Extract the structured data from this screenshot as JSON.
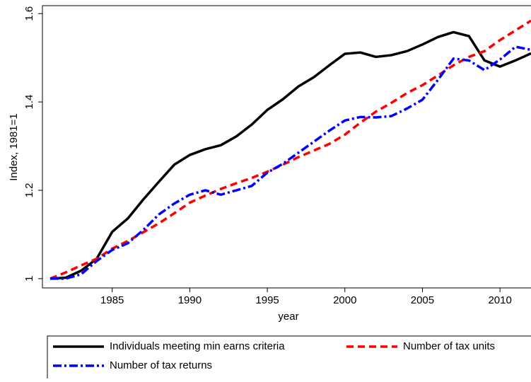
{
  "chart_data": {
    "type": "line",
    "x_label": "year",
    "y_label": "Index, 1981=1",
    "x": [
      1981,
      1982,
      1983,
      1984,
      1985,
      1986,
      1987,
      1988,
      1989,
      1990,
      1991,
      1992,
      1993,
      1994,
      1995,
      1996,
      1997,
      1998,
      1999,
      2000,
      2001,
      2002,
      2003,
      2004,
      2005,
      2006,
      2007,
      2008,
      2009,
      2010,
      2011,
      2012
    ],
    "series": [
      {
        "name": "Individuals meeting min earns criteria",
        "color": "#000000",
        "dash": "solid",
        "values": [
          1.0,
          1.002,
          1.018,
          1.045,
          1.106,
          1.136,
          1.179,
          1.219,
          1.258,
          1.28,
          1.293,
          1.302,
          1.322,
          1.349,
          1.382,
          1.406,
          1.435,
          1.456,
          1.483,
          1.509,
          1.512,
          1.502,
          1.506,
          1.515,
          1.53,
          1.547,
          1.558,
          1.549,
          1.494,
          1.48,
          1.494,
          1.51
        ]
      },
      {
        "name": "Number of tax units",
        "color": "#ff0000",
        "dash": "dashed",
        "values": [
          1.0,
          1.014,
          1.03,
          1.045,
          1.068,
          1.085,
          1.105,
          1.125,
          1.148,
          1.172,
          1.188,
          1.203,
          1.216,
          1.228,
          1.242,
          1.258,
          1.275,
          1.29,
          1.305,
          1.326,
          1.353,
          1.378,
          1.398,
          1.42,
          1.438,
          1.46,
          1.483,
          1.502,
          1.515,
          1.54,
          1.562,
          1.584
        ]
      },
      {
        "name": "Number of tax returns",
        "color": "#0000ff",
        "dash": "dashdot",
        "values": [
          1.0,
          1.0,
          1.01,
          1.04,
          1.065,
          1.08,
          1.11,
          1.145,
          1.17,
          1.19,
          1.2,
          1.19,
          1.2,
          1.21,
          1.24,
          1.26,
          1.285,
          1.31,
          1.335,
          1.358,
          1.366,
          1.365,
          1.368,
          1.385,
          1.405,
          1.45,
          1.498,
          1.494,
          1.472,
          1.496,
          1.525,
          1.518
        ]
      }
    ],
    "xlim": [
      1980.5,
      2012
    ],
    "ylim": [
      0.979,
      1.618
    ],
    "xticks": [
      1985,
      1990,
      1995,
      2000,
      2005,
      2010
    ],
    "yticks": [
      1,
      1.2,
      1.4,
      1.6
    ],
    "grid": false,
    "legend": "bottom"
  }
}
